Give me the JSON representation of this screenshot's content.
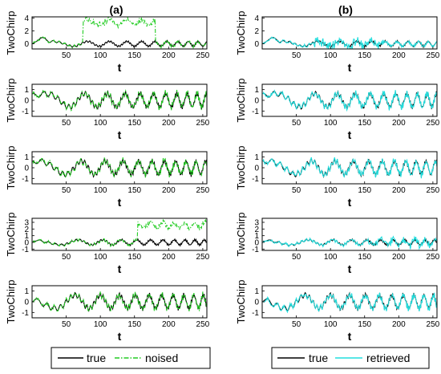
{
  "figure": {
    "panel_titles": [
      "(a)",
      "(b)"
    ]
  },
  "legends": [
    {
      "entries": [
        {
          "label": "true",
          "color": "#000000",
          "style": "solid"
        },
        {
          "label": "noised",
          "color": "#22cc22",
          "style": "dashdot"
        }
      ]
    },
    {
      "entries": [
        {
          "label": "true",
          "color": "#000000",
          "style": "solid"
        },
        {
          "label": "retrieved",
          "color": "#22dddd",
          "style": "solid"
        }
      ]
    }
  ],
  "colors": {
    "true": "#000000",
    "noised": "#22cc22",
    "retrieved": "#22dddd"
  },
  "chart_data": [
    {
      "type": "line",
      "panel": "(a)",
      "row": 1,
      "xlabel": "t",
      "ylabel": "TwoChirp",
      "xlim": [
        0,
        256
      ],
      "ylim": [
        -0.8,
        4.2
      ],
      "xticks": [
        50,
        100,
        150,
        200,
        250
      ],
      "yticks": [
        0,
        2,
        4
      ],
      "series": [
        {
          "name": "true",
          "kind": "true"
        },
        {
          "name": "noised",
          "kind": "noised",
          "offset": 3.4,
          "offset_range": [
            75,
            180
          ]
        }
      ]
    },
    {
      "type": "line",
      "panel": "(a)",
      "row": 2,
      "xlabel": "t",
      "ylabel": "TwoChirp",
      "xlim": [
        0,
        256
      ],
      "ylim": [
        -1.5,
        1.5
      ],
      "xticks": [
        50,
        100,
        150,
        200,
        250
      ],
      "yticks": [
        -1,
        0,
        1
      ],
      "series": [
        {
          "name": "true",
          "kind": "true"
        },
        {
          "name": "noised",
          "kind": "noised"
        }
      ]
    },
    {
      "type": "line",
      "panel": "(a)",
      "row": 3,
      "xlabel": "t",
      "ylabel": "TwoChirp",
      "xlim": [
        0,
        256
      ],
      "ylim": [
        -1.5,
        1.5
      ],
      "xticks": [
        50,
        100,
        150,
        200,
        250
      ],
      "yticks": [
        -1,
        0,
        1
      ],
      "series": [
        {
          "name": "true",
          "kind": "true"
        },
        {
          "name": "noised",
          "kind": "noised"
        }
      ]
    },
    {
      "type": "line",
      "panel": "(a)",
      "row": 4,
      "xlabel": "t",
      "ylabel": "TwoChirp",
      "xlim": [
        0,
        256
      ],
      "ylim": [
        -1.2,
        3.6
      ],
      "xticks": [
        50,
        100,
        150,
        200,
        250
      ],
      "yticks": [
        -1,
        0,
        1,
        2,
        3
      ],
      "series": [
        {
          "name": "true",
          "kind": "true"
        },
        {
          "name": "noised",
          "kind": "noised",
          "offset": 2.6,
          "offset_range": [
            155,
            256
          ]
        }
      ]
    },
    {
      "type": "line",
      "panel": "(a)",
      "row": 5,
      "xlabel": "t",
      "ylabel": "TwoChirp",
      "xlim": [
        0,
        256
      ],
      "ylim": [
        -1.5,
        1.5
      ],
      "xticks": [
        50,
        100,
        150,
        200,
        250
      ],
      "yticks": [
        -1,
        0,
        1
      ],
      "series": [
        {
          "name": "true",
          "kind": "true"
        },
        {
          "name": "noised",
          "kind": "noised"
        }
      ]
    },
    {
      "type": "line",
      "panel": "(b)",
      "row": 1,
      "xlabel": "t",
      "ylabel": "TwoChirp",
      "xlim": [
        0,
        256
      ],
      "ylim": [
        -0.8,
        4.2
      ],
      "xticks": [
        50,
        100,
        150,
        200,
        250
      ],
      "yticks": [
        0,
        2,
        4
      ],
      "series": [
        {
          "name": "true",
          "kind": "true"
        },
        {
          "name": "retrieved",
          "kind": "retrieved"
        }
      ]
    },
    {
      "type": "line",
      "panel": "(b)",
      "row": 2,
      "xlabel": "t",
      "ylabel": "TwoChirp",
      "xlim": [
        0,
        256
      ],
      "ylim": [
        -1.5,
        1.5
      ],
      "xticks": [
        50,
        100,
        150,
        200,
        250
      ],
      "yticks": [
        -1,
        0,
        1
      ],
      "series": [
        {
          "name": "true",
          "kind": "true"
        },
        {
          "name": "retrieved",
          "kind": "retrieved"
        }
      ]
    },
    {
      "type": "line",
      "panel": "(b)",
      "row": 3,
      "xlabel": "t",
      "ylabel": "TwoChirp",
      "xlim": [
        0,
        256
      ],
      "ylim": [
        -1.5,
        1.5
      ],
      "xticks": [
        50,
        100,
        150,
        200,
        250
      ],
      "yticks": [
        -1,
        0,
        1
      ],
      "series": [
        {
          "name": "true",
          "kind": "true"
        },
        {
          "name": "retrieved",
          "kind": "retrieved"
        }
      ]
    },
    {
      "type": "line",
      "panel": "(b)",
      "row": 4,
      "xlabel": "t",
      "ylabel": "TwoChirp",
      "xlim": [
        0,
        256
      ],
      "ylim": [
        -1.2,
        3.6
      ],
      "xticks": [
        50,
        100,
        150,
        200,
        250
      ],
      "yticks": [
        -1,
        0,
        1,
        2,
        3
      ],
      "series": [
        {
          "name": "true",
          "kind": "true"
        },
        {
          "name": "retrieved",
          "kind": "retrieved"
        }
      ]
    },
    {
      "type": "line",
      "panel": "(b)",
      "row": 5,
      "xlabel": "t",
      "ylabel": "TwoChirp",
      "xlim": [
        0,
        256
      ],
      "ylim": [
        -1.5,
        1.5
      ],
      "xticks": [
        50,
        100,
        150,
        200,
        250
      ],
      "yticks": [
        -1,
        0,
        1
      ],
      "series": [
        {
          "name": "true",
          "kind": "true"
        },
        {
          "name": "retrieved",
          "kind": "retrieved"
        }
      ]
    }
  ]
}
